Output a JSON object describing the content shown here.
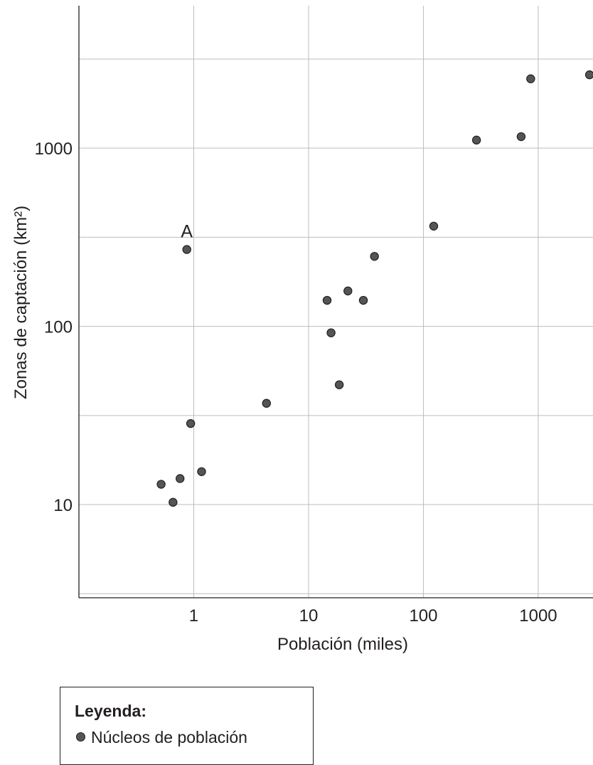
{
  "chart_data": {
    "type": "scatter",
    "xlabel": "Población (miles)",
    "ylabel": "Zonas de captación (km²)",
    "x_scale": "log",
    "y_scale": "log",
    "xlim": [
      0.1,
      3000
    ],
    "ylim": [
      3,
      6300
    ],
    "grid": true,
    "x_ticks": [
      1,
      10,
      100,
      1000
    ],
    "x_tick_labels": [
      "1",
      "10",
      "100",
      "1000"
    ],
    "y_ticks": [
      10,
      100,
      1000
    ],
    "y_tick_labels": [
      "10",
      "100",
      "1000"
    ],
    "points": [
      {
        "x": 0.52,
        "y": 13
      },
      {
        "x": 0.66,
        "y": 10.3
      },
      {
        "x": 0.76,
        "y": 14
      },
      {
        "x": 0.87,
        "y": 270,
        "label": "A"
      },
      {
        "x": 0.94,
        "y": 28.5
      },
      {
        "x": 1.17,
        "y": 15.3
      },
      {
        "x": 4.3,
        "y": 37
      },
      {
        "x": 14.5,
        "y": 140
      },
      {
        "x": 15.7,
        "y": 92
      },
      {
        "x": 18.5,
        "y": 47
      },
      {
        "x": 22,
        "y": 158
      },
      {
        "x": 30,
        "y": 140
      },
      {
        "x": 37.5,
        "y": 247
      },
      {
        "x": 123,
        "y": 365
      },
      {
        "x": 290,
        "y": 1110
      },
      {
        "x": 710,
        "y": 1160
      },
      {
        "x": 860,
        "y": 2450
      },
      {
        "x": 2800,
        "y": 2580
      }
    ],
    "point_color": "#555555",
    "point_edge_color": "#222222",
    "grid_color": "#bdbdbd"
  },
  "legend": {
    "title": "Leyenda:",
    "item_label": "Núcleos de población"
  }
}
